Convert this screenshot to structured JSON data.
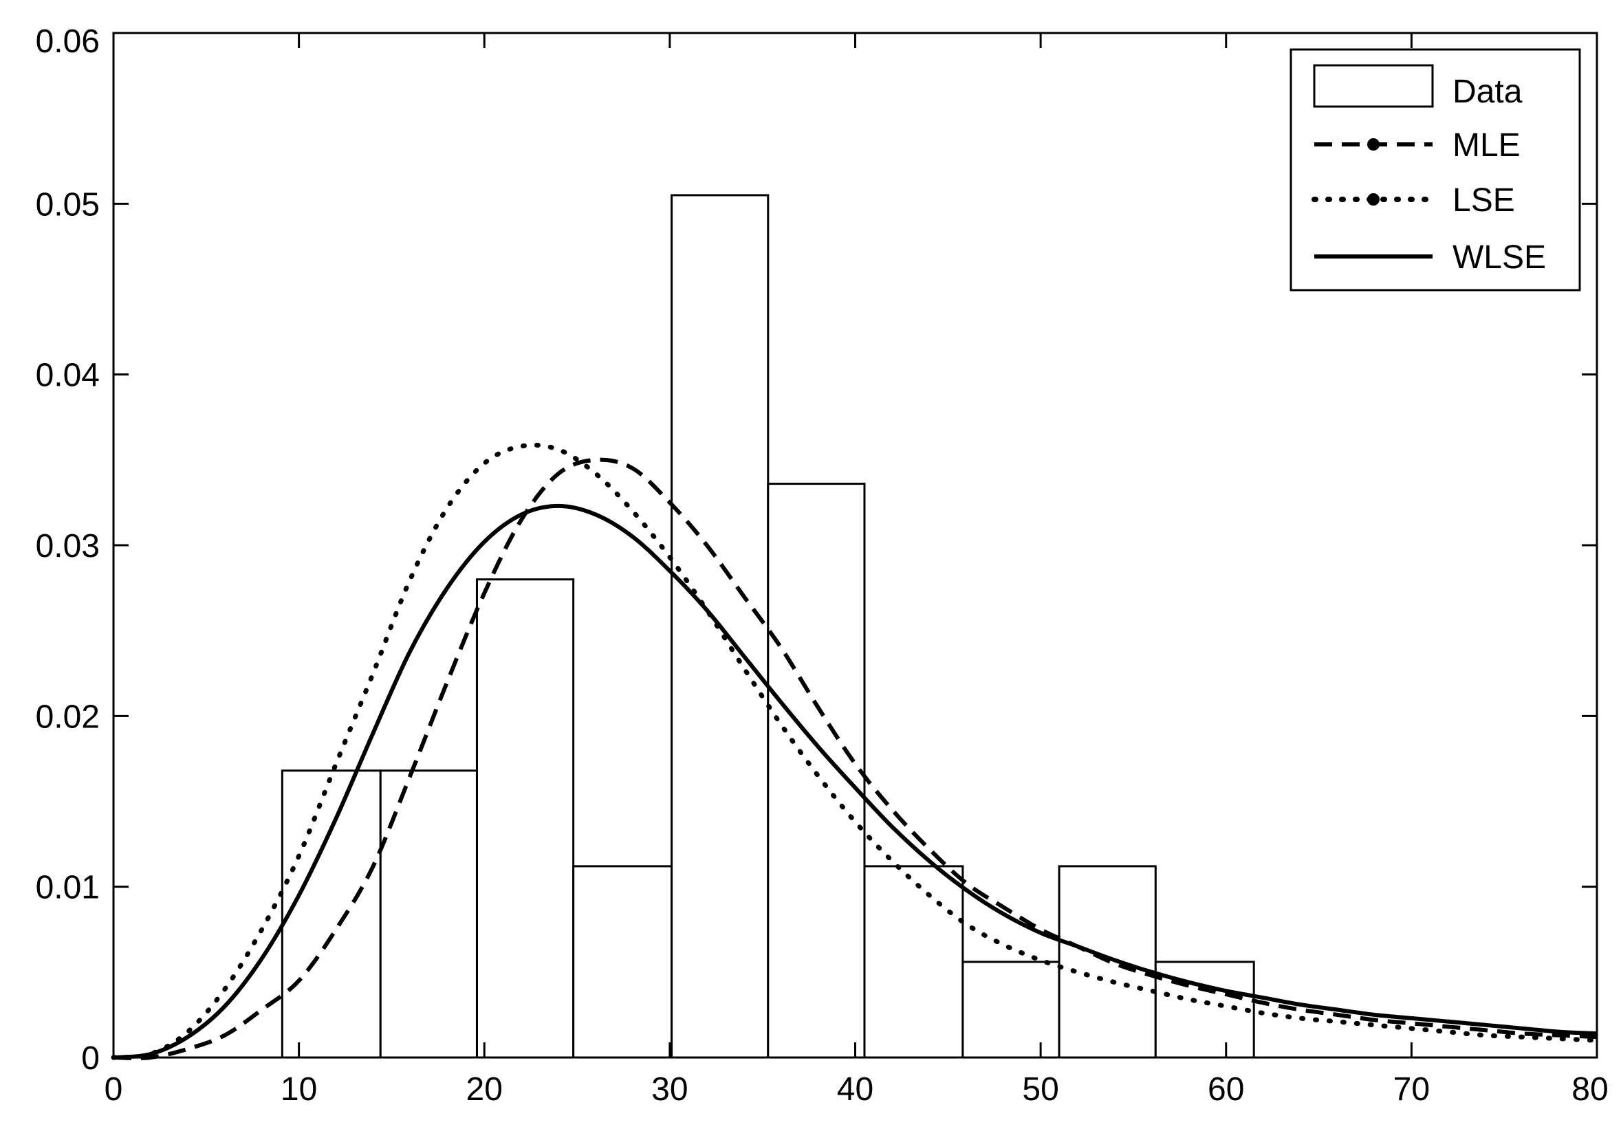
{
  "chart_data": {
    "type": "bar",
    "title": "",
    "xlabel": "",
    "ylabel": "",
    "xlim": [
      0,
      80
    ],
    "ylim": [
      0,
      0.06
    ],
    "x_ticks": [
      0,
      10,
      20,
      30,
      40,
      50,
      60,
      70,
      80
    ],
    "y_ticks": [
      0,
      0.01,
      0.02,
      0.03,
      0.04,
      0.05,
      0.06
    ],
    "x_tick_labels": [
      "0",
      "10",
      "20",
      "30",
      "40",
      "50",
      "60",
      "70",
      "80"
    ],
    "y_tick_labels": [
      "0",
      "0.01",
      "0.02",
      "0.03",
      "0.04",
      "0.05",
      "0.06"
    ],
    "grid": false,
    "legend_placement": "top-right",
    "histogram": {
      "name": "Data",
      "bins": [
        {
          "x0": 9.1,
          "x1": 14.4,
          "value": 0.0168
        },
        {
          "x0": 14.4,
          "x1": 19.6,
          "value": 0.0168
        },
        {
          "x0": 19.6,
          "x1": 24.8,
          "value": 0.028
        },
        {
          "x0": 24.8,
          "x1": 30.1,
          "value": 0.0112
        },
        {
          "x0": 30.1,
          "x1": 35.3,
          "value": 0.0505
        },
        {
          "x0": 35.3,
          "x1": 40.5,
          "value": 0.0336
        },
        {
          "x0": 40.5,
          "x1": 45.8,
          "value": 0.0112
        },
        {
          "x0": 45.8,
          "x1": 51.0,
          "value": 0.0056
        },
        {
          "x0": 51.0,
          "x1": 56.2,
          "value": 0.0112
        },
        {
          "x0": 56.2,
          "x1": 61.5,
          "value": 0.0056
        }
      ]
    },
    "series": [
      {
        "name": "MLE",
        "style": "dashed",
        "x": [
          0,
          2,
          4,
          6,
          8,
          10,
          12,
          14,
          16,
          18,
          20,
          22,
          24,
          26,
          28,
          30,
          32,
          34,
          36,
          38,
          40,
          42,
          44,
          46,
          48,
          50,
          52,
          54,
          56,
          58,
          60,
          62,
          64,
          66,
          68,
          70,
          72,
          74,
          76,
          78,
          80
        ],
        "y": [
          0,
          0,
          0.0005,
          0.0013,
          0.0028,
          0.0045,
          0.0075,
          0.0112,
          0.0165,
          0.022,
          0.0272,
          0.0315,
          0.0342,
          0.035,
          0.0345,
          0.0325,
          0.03,
          0.027,
          0.024,
          0.0205,
          0.0172,
          0.0145,
          0.0122,
          0.0102,
          0.0088,
          0.0075,
          0.0065,
          0.0055,
          0.0048,
          0.0042,
          0.0037,
          0.0032,
          0.0028,
          0.0025,
          0.0022,
          0.002,
          0.0018,
          0.0016,
          0.0014,
          0.0013,
          0.0012
        ]
      },
      {
        "name": "LSE",
        "style": "dotted",
        "x": [
          0,
          2,
          4,
          6,
          8,
          10,
          12,
          14,
          16,
          18,
          20,
          22,
          24,
          26,
          28,
          30,
          32,
          34,
          36,
          38,
          40,
          42,
          44,
          46,
          48,
          50,
          52,
          54,
          56,
          58,
          60,
          62,
          64,
          66,
          68,
          70,
          72,
          74,
          76,
          78,
          80
        ],
        "y": [
          0,
          0.0002,
          0.0015,
          0.004,
          0.0075,
          0.0118,
          0.0172,
          0.0225,
          0.028,
          0.0322,
          0.0348,
          0.0358,
          0.0356,
          0.0342,
          0.032,
          0.0293,
          0.0262,
          0.0228,
          0.0195,
          0.0165,
          0.0138,
          0.0115,
          0.0095,
          0.0078,
          0.0066,
          0.0057,
          0.005,
          0.0044,
          0.0039,
          0.0034,
          0.003,
          0.0026,
          0.0023,
          0.0021,
          0.0019,
          0.0017,
          0.0015,
          0.0013,
          0.0012,
          0.0011,
          0.001
        ]
      },
      {
        "name": "WLSE",
        "style": "solid",
        "x": [
          0,
          2,
          4,
          6,
          8,
          10,
          12,
          14,
          16,
          18,
          20,
          22,
          24,
          26,
          28,
          30,
          32,
          34,
          36,
          38,
          40,
          42,
          44,
          46,
          48,
          50,
          52,
          54,
          56,
          58,
          60,
          62,
          64,
          66,
          68,
          70,
          72,
          74,
          76,
          78,
          80
        ],
        "y": [
          0,
          0.0002,
          0.0012,
          0.003,
          0.0058,
          0.0095,
          0.014,
          0.019,
          0.0238,
          0.0275,
          0.0302,
          0.0318,
          0.0323,
          0.0318,
          0.0305,
          0.0285,
          0.0262,
          0.0235,
          0.0208,
          0.0182,
          0.0158,
          0.0135,
          0.0115,
          0.0098,
          0.0084,
          0.0073,
          0.0065,
          0.0057,
          0.005,
          0.0044,
          0.0039,
          0.0035,
          0.0031,
          0.0028,
          0.0025,
          0.0023,
          0.0021,
          0.0019,
          0.0017,
          0.0015,
          0.0014
        ]
      }
    ]
  }
}
